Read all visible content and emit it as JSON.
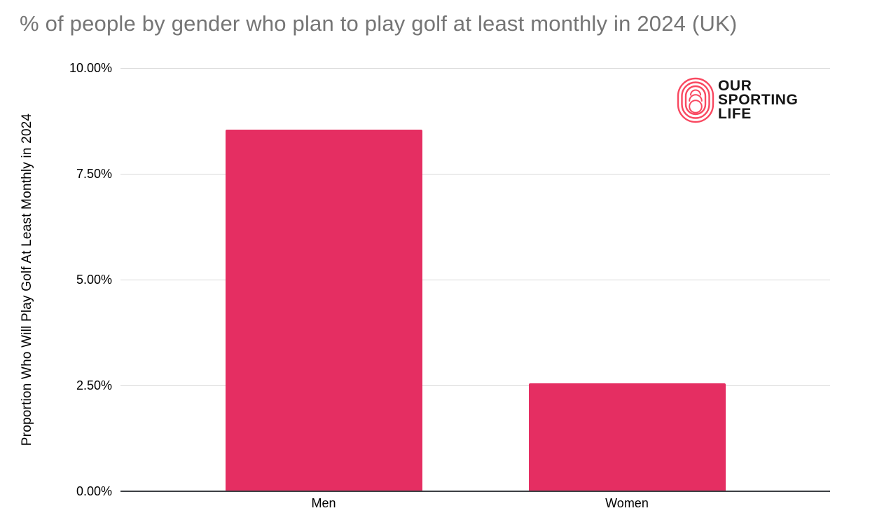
{
  "chart_data": {
    "type": "bar",
    "title": "% of people by gender who plan to play golf at least monthly in 2024 (UK)",
    "categories": [
      "Men",
      "Women"
    ],
    "values": [
      8.54,
      2.55
    ],
    "xlabel": "",
    "ylabel": "Proportion Who Will Play Golf At Least Monthly in 2024",
    "ylim": [
      0,
      10
    ],
    "ytick_labels": [
      "0.00%",
      "2.50%",
      "5.00%",
      "7.50%",
      "10.00%"
    ],
    "grid": true,
    "legend": false,
    "bar_color": "#E52E62"
  },
  "logo": {
    "lines": [
      "OUR",
      "SPORTING",
      "LIFE"
    ],
    "icon": "track-rings-icon"
  },
  "colors": {
    "background": "#FFFFFF",
    "bar": "#E52E62",
    "title_text": "#757575",
    "axis_text": "#000000",
    "gridline": "#D9D9D9",
    "axis_line": "#3C4043",
    "logo_pink": "#F94860",
    "logo_text": "#151515"
  }
}
